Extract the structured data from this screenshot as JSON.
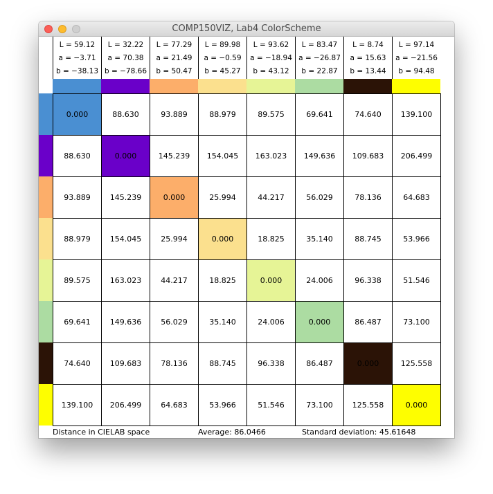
{
  "window": {
    "title": "COMP150VIZ, Lab4 ColorScheme"
  },
  "colors": [
    {
      "L": "L = 59.12",
      "a": "a = −3.71",
      "b": "b = −38.13",
      "hex": "#4a8fd2"
    },
    {
      "L": "L = 32.22",
      "a": "a = 70.38",
      "b": "b = −78.66",
      "hex": "#6a00c9"
    },
    {
      "L": "L = 77.29",
      "a": "a = 21.49",
      "b": "b = 50.47",
      "hex": "#fcae6a"
    },
    {
      "L": "L = 89.98",
      "a": "a = −0.59",
      "b": "b = 45.27",
      "hex": "#fbe08e"
    },
    {
      "L": "L = 93.62",
      "a": "a = −18.94",
      "b": "b = 43.12",
      "hex": "#e6f496"
    },
    {
      "L": "L = 83.47",
      "a": "a = −26.87",
      "b": "b = 22.87",
      "hex": "#acdca2"
    },
    {
      "L": "L = 8.74",
      "a": "a = 15.63",
      "b": "b = 13.44",
      "hex": "#2b1306"
    },
    {
      "L": "L = 97.14",
      "a": "a = −21.56",
      "b": "b = 94.48",
      "hex": "#fefe00"
    }
  ],
  "matrix": [
    [
      "0.000",
      "88.630",
      "93.889",
      "88.979",
      "89.575",
      "69.641",
      "74.640",
      "139.100"
    ],
    [
      "88.630",
      "0.000",
      "145.239",
      "154.045",
      "163.023",
      "149.636",
      "109.683",
      "206.499"
    ],
    [
      "93.889",
      "145.239",
      "0.000",
      "25.994",
      "44.217",
      "56.029",
      "78.136",
      "64.683"
    ],
    [
      "88.979",
      "154.045",
      "25.994",
      "0.000",
      "18.825",
      "35.140",
      "88.745",
      "53.966"
    ],
    [
      "89.575",
      "163.023",
      "44.217",
      "18.825",
      "0.000",
      "24.006",
      "96.338",
      "51.546"
    ],
    [
      "69.641",
      "149.636",
      "56.029",
      "35.140",
      "24.006",
      "0.000",
      "86.487",
      "73.100"
    ],
    [
      "74.640",
      "109.683",
      "78.136",
      "88.745",
      "96.338",
      "86.487",
      "0.000",
      "125.558"
    ],
    [
      "139.100",
      "206.499",
      "64.683",
      "53.966",
      "51.546",
      "73.100",
      "125.558",
      "0.000"
    ]
  ],
  "status": {
    "space_label": "Distance in CIELAB space",
    "average": "Average: 86.0466",
    "stddev": "Standard deviation: 45.61648"
  }
}
